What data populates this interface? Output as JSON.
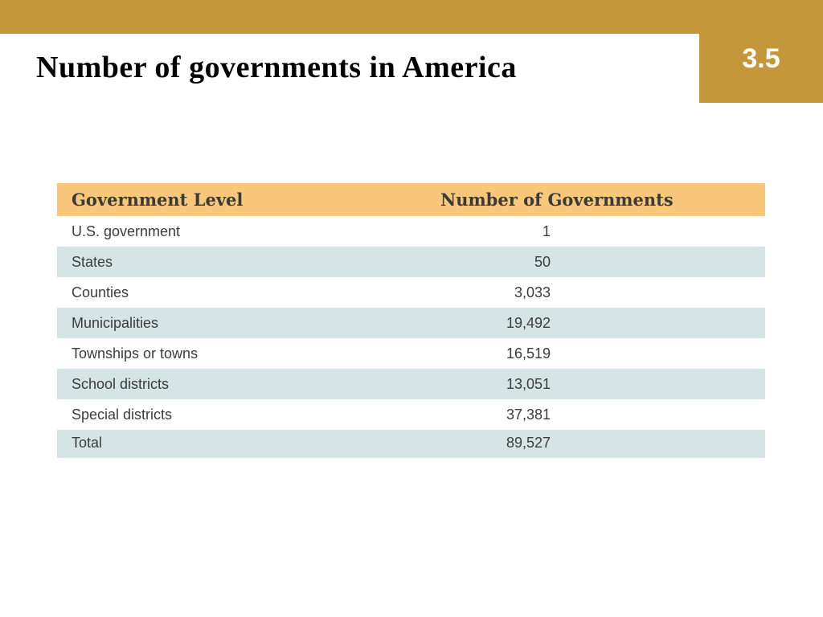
{
  "slide": {
    "number": "3.5",
    "title": "Number of governments in America"
  },
  "colors": {
    "accent": "#c4973a",
    "header_row": "#f9c77a",
    "band_row": "#d6e4e6"
  },
  "table": {
    "headers": {
      "level": "Government Level",
      "count": "Number of Governments"
    },
    "rows": [
      {
        "level": "U.S. government",
        "count": "1"
      },
      {
        "level": "States",
        "count": "50"
      },
      {
        "level": "Counties",
        "count": "3,033"
      },
      {
        "level": "Municipalities",
        "count": "19,492"
      },
      {
        "level": "Townships or towns",
        "count": "16,519"
      },
      {
        "level": "School districts",
        "count": "13,051"
      },
      {
        "level": "Special districts",
        "count": "37,381"
      }
    ],
    "total": {
      "level": "Total",
      "count": "89,527"
    }
  }
}
